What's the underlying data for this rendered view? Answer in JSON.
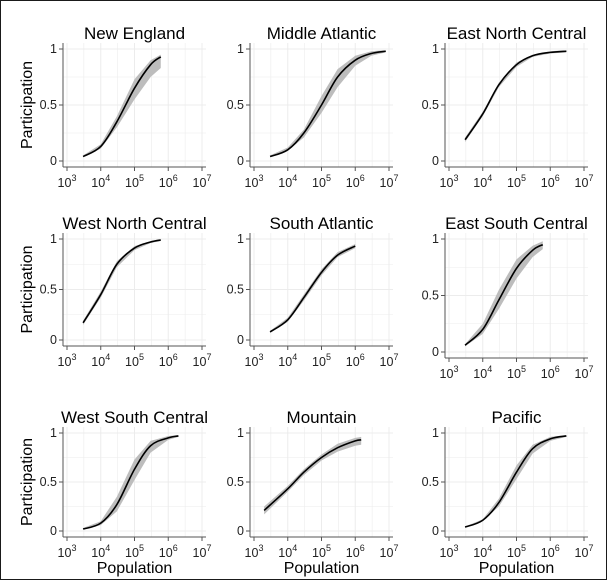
{
  "chart_data": {
    "type": "line",
    "layout": "3x3 facet grid",
    "shared_x_axis": {
      "label": "Population",
      "scale": "log10",
      "range": [
        1000,
        10000000
      ],
      "tick_labels": [
        "10^3",
        "10^4",
        "10^5",
        "10^6",
        "10^7"
      ]
    },
    "shared_y_axis": {
      "label": "Participation",
      "range": [
        0,
        1
      ],
      "tick_labels": [
        "0",
        "0.5",
        "1"
      ]
    },
    "panels": [
      {
        "title": "New England",
        "x": [
          3000,
          10000,
          30000,
          100000,
          300000,
          600000
        ],
        "y": [
          0.04,
          0.13,
          0.35,
          0.65,
          0.86,
          0.93
        ],
        "ci_lower": [
          0.035,
          0.11,
          0.3,
          0.55,
          0.75,
          0.83
        ],
        "ci_upper": [
          0.05,
          0.15,
          0.4,
          0.73,
          0.9,
          0.95
        ]
      },
      {
        "title": "Middle Atlantic",
        "x": [
          3000,
          10000,
          30000,
          100000,
          300000,
          1000000,
          3000000,
          8000000
        ],
        "y": [
          0.04,
          0.1,
          0.25,
          0.5,
          0.75,
          0.9,
          0.96,
          0.98
        ],
        "ci_lower": [
          0.035,
          0.09,
          0.21,
          0.43,
          0.66,
          0.85,
          0.94,
          0.97
        ],
        "ci_upper": [
          0.05,
          0.12,
          0.28,
          0.58,
          0.82,
          0.94,
          0.98,
          0.99
        ]
      },
      {
        "title": "East North Central",
        "x": [
          3000,
          10000,
          30000,
          100000,
          300000,
          1000000,
          3000000
        ],
        "y": [
          0.19,
          0.42,
          0.68,
          0.86,
          0.94,
          0.97,
          0.98
        ],
        "ci_lower": [
          0.17,
          0.4,
          0.66,
          0.84,
          0.93,
          0.96,
          0.97
        ],
        "ci_upper": [
          0.21,
          0.44,
          0.7,
          0.88,
          0.95,
          0.98,
          0.99
        ]
      },
      {
        "title": "West North Central",
        "x": [
          3000,
          10000,
          30000,
          100000,
          300000,
          600000
        ],
        "y": [
          0.17,
          0.45,
          0.75,
          0.91,
          0.97,
          0.99
        ],
        "ci_lower": [
          0.15,
          0.42,
          0.72,
          0.89,
          0.96,
          0.98
        ],
        "ci_upper": [
          0.19,
          0.48,
          0.78,
          0.93,
          0.98,
          1.0
        ]
      },
      {
        "title": "South Atlantic",
        "x": [
          3000,
          10000,
          30000,
          100000,
          300000,
          1000000
        ],
        "y": [
          0.08,
          0.2,
          0.42,
          0.67,
          0.84,
          0.93
        ],
        "ci_lower": [
          0.07,
          0.18,
          0.39,
          0.64,
          0.82,
          0.91
        ],
        "ci_upper": [
          0.09,
          0.22,
          0.45,
          0.7,
          0.87,
          0.95
        ]
      },
      {
        "title": "East South Central",
        "x": [
          3000,
          10000,
          30000,
          100000,
          300000,
          600000
        ],
        "y": [
          0.06,
          0.2,
          0.46,
          0.74,
          0.9,
          0.95
        ],
        "ci_lower": [
          0.05,
          0.16,
          0.38,
          0.65,
          0.84,
          0.91
        ],
        "ci_upper": [
          0.07,
          0.25,
          0.55,
          0.82,
          0.94,
          0.98
        ]
      },
      {
        "title": "West South Central",
        "x": [
          3000,
          10000,
          30000,
          100000,
          300000,
          1000000,
          2000000
        ],
        "y": [
          0.02,
          0.08,
          0.27,
          0.63,
          0.87,
          0.95,
          0.97
        ],
        "ci_lower": [
          0.015,
          0.06,
          0.2,
          0.52,
          0.8,
          0.93,
          0.96
        ],
        "ci_upper": [
          0.03,
          0.1,
          0.35,
          0.73,
          0.92,
          0.97,
          0.98
        ]
      },
      {
        "title": "Mountain",
        "x": [
          2000,
          10000,
          30000,
          100000,
          300000,
          1000000,
          1500000
        ],
        "y": [
          0.21,
          0.43,
          0.6,
          0.75,
          0.85,
          0.92,
          0.93
        ],
        "ci_lower": [
          0.17,
          0.4,
          0.57,
          0.72,
          0.81,
          0.87,
          0.88
        ],
        "ci_upper": [
          0.25,
          0.46,
          0.63,
          0.78,
          0.89,
          0.95,
          0.96
        ]
      },
      {
        "title": "Pacific",
        "x": [
          3000,
          10000,
          30000,
          100000,
          300000,
          1000000,
          3000000
        ],
        "y": [
          0.04,
          0.11,
          0.29,
          0.6,
          0.84,
          0.94,
          0.97
        ],
        "ci_lower": [
          0.035,
          0.1,
          0.25,
          0.53,
          0.79,
          0.92,
          0.96
        ],
        "ci_upper": [
          0.045,
          0.12,
          0.33,
          0.67,
          0.88,
          0.96,
          0.98
        ]
      }
    ]
  },
  "colors": {
    "line": "#000000",
    "band": "#bdbdbd",
    "grid": "#ececec",
    "axis": "#555555",
    "border": "#1a1a1a"
  }
}
